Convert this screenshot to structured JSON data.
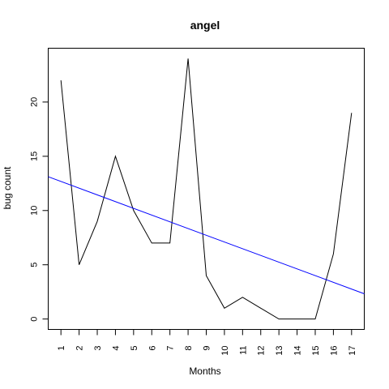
{
  "chart_data": {
    "type": "line",
    "title": "angel",
    "xlabel": "Months",
    "ylabel": "bug count",
    "x": [
      1,
      2,
      3,
      4,
      5,
      6,
      7,
      8,
      9,
      10,
      11,
      12,
      13,
      14,
      15,
      16,
      17
    ],
    "series": [
      {
        "values": [
          22,
          5,
          9,
          15,
          10,
          7,
          7,
          24,
          4,
          1,
          2,
          1,
          0,
          0,
          0,
          6,
          19
        ],
        "color": "#000000"
      }
    ],
    "trend_line": {
      "type": "linear",
      "color": "#0000ff",
      "intercept": 13.3,
      "slope": -0.62
    },
    "xlim": [
      0.3,
      17.7
    ],
    "ylim": [
      -0.96,
      24.96
    ],
    "xticks": [
      "1",
      "2",
      "3",
      "4",
      "5",
      "6",
      "7",
      "8",
      "9",
      "10",
      "11",
      "12",
      "13",
      "14",
      "15",
      "16",
      "17"
    ],
    "yticks": [
      "0",
      "5",
      "10",
      "15",
      "20"
    ],
    "grid": false,
    "legend": "none"
  }
}
